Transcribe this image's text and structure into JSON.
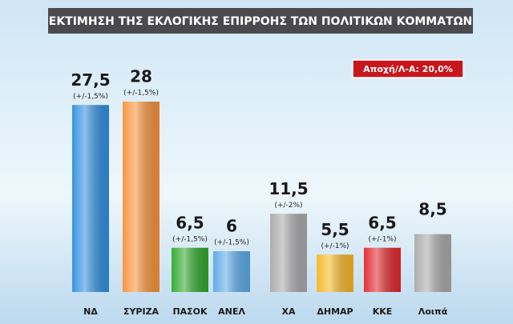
{
  "chart_data": {
    "type": "bar",
    "title": "ΕΚΤΙΜΗΣΗ ΤΗΣ ΕΚΛΟΓΙΚΗΣ ΕΠΙΡΡΟΗΣ ΤΩΝ ΠΟΛΙΤΙΚΩΝ ΚΟΜΜΑΤΩΝ",
    "annotation": "Αποχή/Λ-Α: 20,0%",
    "categories": [
      "ΝΔ",
      "ΣΥΡΙΖΑ",
      "ΠΑΣΟΚ",
      "ΑΝΕΛ",
      "ΧΑ",
      "ΔΗΜΑΡ",
      "ΚΚΕ",
      "Λοιπά"
    ],
    "values": [
      27.5,
      28,
      6.5,
      6,
      11.5,
      5.5,
      6.5,
      8.5
    ],
    "value_labels": [
      "27,5",
      "28",
      "6,5",
      "6",
      "11,5",
      "5,5",
      "6,5",
      "8,5"
    ],
    "margins": [
      "(+/-1,5%)",
      "(+/-1,5%)",
      "(+/-1,5%)",
      "(+/-1,5%)",
      "(+/-2%)",
      "(+/-1%)",
      "(+/-1%)",
      null
    ],
    "colors": [
      "#2f8fe0",
      "#f7923a",
      "#2ea82a",
      "#5aa9e6",
      "#a9a9ab",
      "#f5b723",
      "#e0262b",
      "#a9a9ab"
    ]
  }
}
